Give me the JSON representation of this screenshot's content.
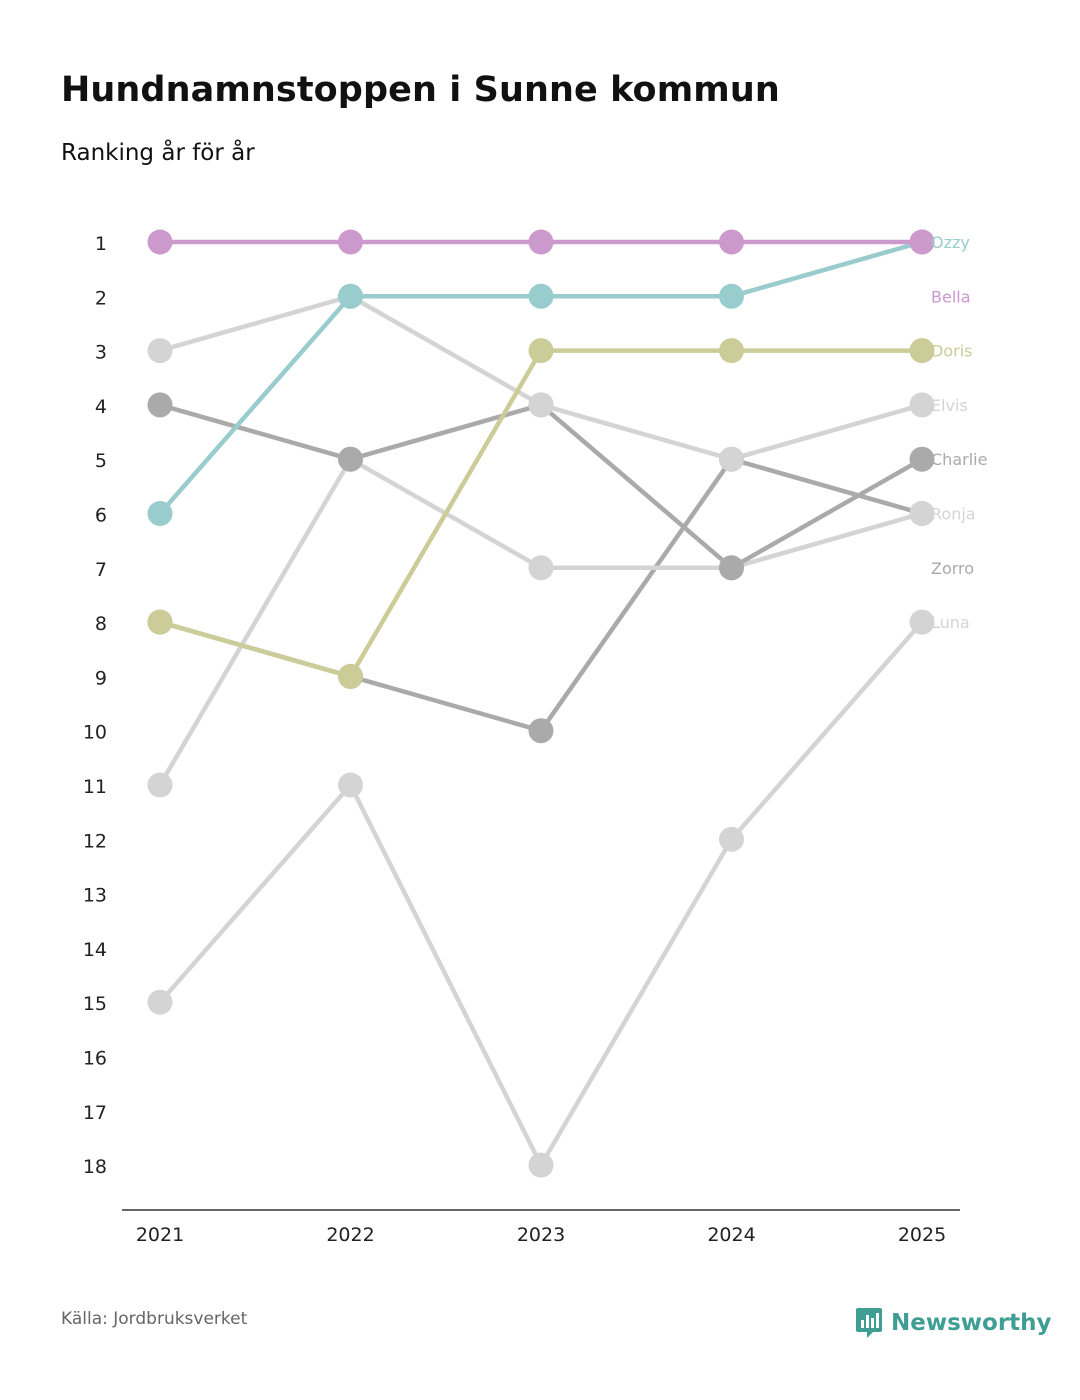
{
  "title": "Hundnamnstoppen i Sunne kommun",
  "subtitle": "Ranking år för år",
  "source": "Källa: Jordbruksverket",
  "brand": "Newsworthy",
  "colors": {
    "Bella": "#cc99cc",
    "Ozzy": "#99cccc",
    "Doris": "#cccc99",
    "dark_grey": "#aaaaaa",
    "light_grey": "#d4d4d4",
    "brand": "#3f9e93"
  },
  "chart_data": {
    "type": "line",
    "title": "Hundnamnstoppen i Sunne kommun",
    "subtitle": "Ranking år för år",
    "xlabel": "",
    "ylabel": "",
    "x": [
      "2021",
      "2022",
      "2023",
      "2024",
      "2025"
    ],
    "y_ticks": [
      "1",
      "2",
      "3",
      "4",
      "5",
      "6",
      "7",
      "8",
      "9",
      "10",
      "11",
      "12",
      "13",
      "14",
      "15",
      "16",
      "17",
      "18"
    ],
    "ylim": [
      1,
      18
    ],
    "y_inverted": true,
    "series": [
      {
        "name": "Luna",
        "color": "#d4d4d4",
        "values": [
          15,
          11,
          18,
          12,
          8
        ]
      },
      {
        "name": "Zorro",
        "color": "#aaaaaa",
        "values": [
          8,
          9,
          10,
          5,
          6
        ]
      },
      {
        "name": "Ronja",
        "color": "#d4d4d4",
        "values": [
          11,
          5,
          7,
          7,
          6
        ]
      },
      {
        "name": "Charlie",
        "color": "#aaaaaa",
        "values": [
          4,
          5,
          4,
          7,
          5
        ]
      },
      {
        "name": "Elvis",
        "color": "#d4d4d4",
        "values": [
          3,
          2,
          4,
          5,
          4
        ]
      },
      {
        "name": "Doris",
        "color": "#cccc99",
        "values": [
          8,
          9,
          3,
          3,
          3
        ]
      },
      {
        "name": "Ozzy",
        "color": "#99cccc",
        "values": [
          6,
          2,
          2,
          2,
          1
        ]
      },
      {
        "name": "Bella",
        "color": "#cc99cc",
        "values": [
          1,
          1,
          1,
          1,
          1
        ]
      }
    ]
  }
}
